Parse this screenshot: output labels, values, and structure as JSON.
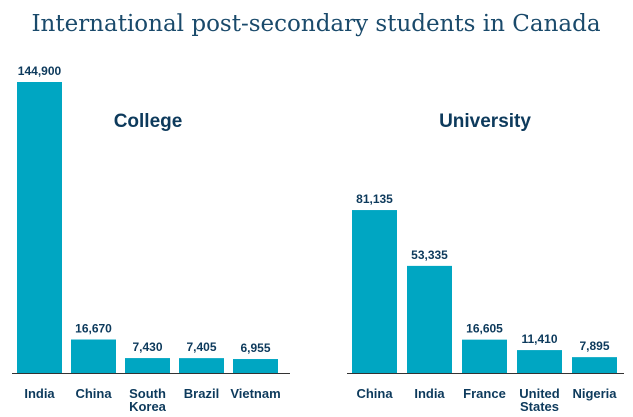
{
  "chart_data": {
    "type": "bar",
    "title": "International post-secondary students in Canada",
    "colors": {
      "bar": "#00a6c2",
      "text": "#0d3a5c",
      "axis": "#333333"
    },
    "panels": [
      {
        "title": "College",
        "categories": [
          [
            "India"
          ],
          [
            "China"
          ],
          [
            "South",
            "Korea"
          ],
          [
            "Brazil"
          ],
          [
            "Vietnam"
          ]
        ],
        "values": [
          144900,
          16670,
          7430,
          7405,
          6955
        ],
        "labels": [
          "144,900",
          "16,670",
          "7,430",
          "7,405",
          "6,955"
        ]
      },
      {
        "title": "University",
        "categories": [
          [
            "China"
          ],
          [
            "India"
          ],
          [
            "France"
          ],
          [
            "United",
            "States"
          ],
          [
            "Nigeria"
          ]
        ],
        "values": [
          81135,
          53335,
          16605,
          11410,
          7895
        ],
        "labels": [
          "81,135",
          "53,335",
          "16,605",
          "11,410",
          "7,895"
        ]
      }
    ]
  }
}
